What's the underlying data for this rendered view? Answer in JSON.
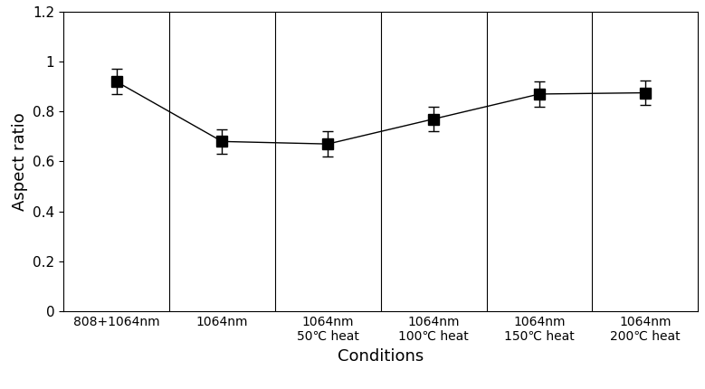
{
  "chart_data": {
    "type": "line",
    "x_label": "Conditions",
    "y_label": "Aspect ratio",
    "categories": [
      "808+1064nm",
      "1064nm",
      "1064nm\n50℃ heat",
      "1064nm\n100℃ heat",
      "1064nm\n150℃ heat",
      "1064nm\n200℃ heat"
    ],
    "values": [
      0.92,
      0.68,
      0.67,
      0.77,
      0.87,
      0.875
    ],
    "errors": [
      0.05,
      0.05,
      0.05,
      0.05,
      0.05,
      0.05
    ],
    "color": "#000000",
    "marker": "square",
    "line_style": "solid",
    "ylim": [
      0,
      1.2
    ],
    "yticks": [
      0,
      0.2,
      0.4,
      0.6,
      0.8,
      1,
      1.2
    ],
    "grid": false
  }
}
